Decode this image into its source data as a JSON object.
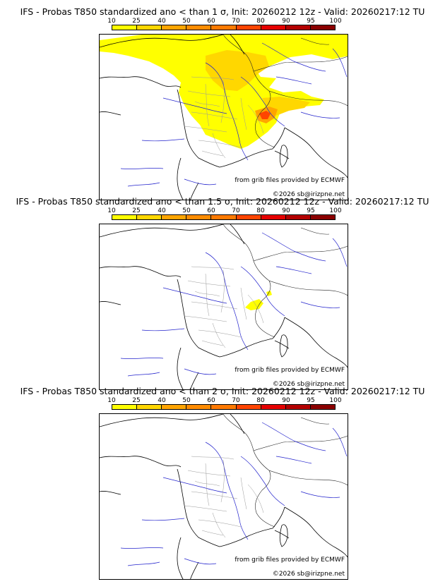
{
  "colorbar": {
    "labels": [
      "10",
      "25",
      "40",
      "50",
      "60",
      "70",
      "80",
      "90",
      "95",
      "100"
    ],
    "colors": [
      "#ffff00",
      "#ffd700",
      "#ffa500",
      "#ff8c00",
      "#ff7a00",
      "#ff4500",
      "#e60000",
      "#b40000",
      "#8b0000",
      "#5a0000"
    ]
  },
  "panels": [
    {
      "title": "IFS - Probas T850  standardized ano < than 1 σ, Init: 20260212 12z - Valid: 20260217:12 TU",
      "credit": "from grib files provided by ECMWF",
      "copyright": "©2026 sb@irizpne.net"
    },
    {
      "title": "IFS - Probas T850  standardized ano < than 1.5 σ, Init: 20260212 12z - Valid: 20260217:12 TU",
      "credit": "from grib files provided by ECMWF",
      "copyright": "©2026 sb@irizpne.net"
    },
    {
      "title": "IFS - Probas T850  standardized ano < than 2 σ, Init: 20260212 12z - Valid: 20260217:12 TU",
      "credit": "from grib files provided by ECMWF",
      "copyright": "©2026 sb@irizpne.net"
    }
  ]
}
